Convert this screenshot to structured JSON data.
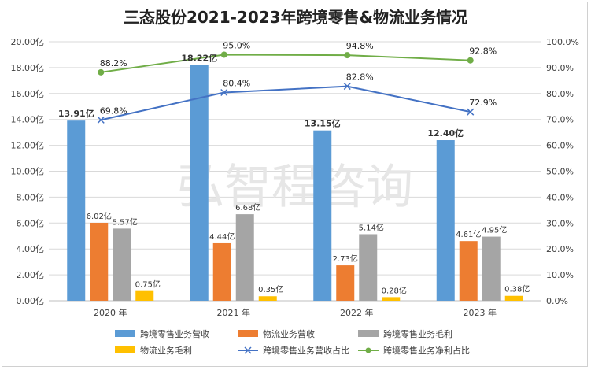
{
  "title": "三态股份2021-2023年跨境零售&物流业务情况",
  "watermark": "弘智程咨询",
  "chart_data": {
    "type": "bar",
    "categories": [
      "2020 年",
      "2021 年",
      "2022 年",
      "2023 年"
    ],
    "left_axis": {
      "ylim": [
        0,
        20
      ],
      "ticks": [
        "0.00亿",
        "2.00亿",
        "4.00亿",
        "6.00亿",
        "8.00亿",
        "10.00亿",
        "12.00亿",
        "14.00亿",
        "16.00亿",
        "18.00亿",
        "20.00亿"
      ]
    },
    "right_axis": {
      "ylim": [
        0,
        100
      ],
      "ticks": [
        "0.0%",
        "10.0%",
        "20.0%",
        "30.0%",
        "40.0%",
        "50.0%",
        "60.0%",
        "70.0%",
        "80.0%",
        "90.0%",
        "100.0%"
      ]
    },
    "bar_series": [
      {
        "name": "跨境零售业务营收",
        "color": "#5b9bd5",
        "values": [
          13.91,
          18.22,
          13.15,
          12.4
        ],
        "labels": [
          "13.91亿",
          "18.22亿",
          "13.15亿",
          "12.40亿"
        ]
      },
      {
        "name": "物流业务营收",
        "color": "#ed7d31",
        "values": [
          6.02,
          4.44,
          2.73,
          4.61
        ],
        "labels": [
          "6.02亿",
          "4.44亿",
          "2.73亿",
          "4.61亿"
        ]
      },
      {
        "name": "跨境零售业务毛利",
        "color": "#a5a5a5",
        "values": [
          5.57,
          6.68,
          5.14,
          4.95
        ],
        "labels": [
          "5.57亿",
          "6.68亿",
          "5.14亿",
          "4.95亿"
        ]
      },
      {
        "name": "物流业务毛利",
        "color": "#ffc000",
        "values": [
          0.75,
          0.35,
          0.28,
          0.38
        ],
        "labels": [
          "0.75亿",
          "0.35亿",
          "0.28亿",
          "0.38亿"
        ]
      }
    ],
    "line_series": [
      {
        "name": "跨境零售业务营收占比",
        "color": "#4472c4",
        "marker": "x",
        "values": [
          69.8,
          80.4,
          82.8,
          72.9
        ],
        "labels": [
          "69.8%",
          "80.4%",
          "82.8%",
          "72.9%"
        ]
      },
      {
        "name": "跨境零售业务净利占比",
        "color": "#70ad47",
        "marker": "circle",
        "values": [
          88.2,
          95.0,
          94.8,
          92.8
        ],
        "labels": [
          "88.2%",
          "95.0%",
          "94.8%",
          "92.8%"
        ]
      }
    ],
    "legend_position": "bottom",
    "grid": true
  }
}
